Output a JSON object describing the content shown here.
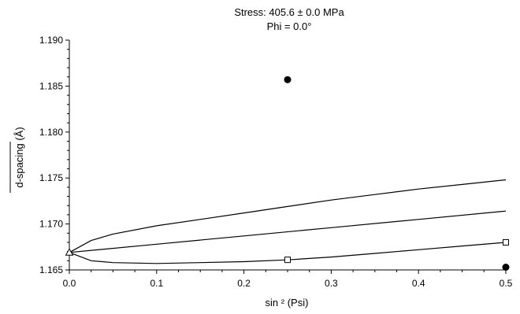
{
  "chart_data": {
    "type": "scatter",
    "title": "Stress: 405.6 ± 0.0  MPa",
    "subtitle": "Phi = 0.0°",
    "xlabel": "sin ² (Psi)",
    "ylabel": "d-spacing (Å)",
    "xlim": [
      0.0,
      0.5
    ],
    "ylim": [
      1.165,
      1.19
    ],
    "x_ticks": [
      "0.0",
      "0.1",
      "0.2",
      "0.3",
      "0.4",
      "0.5"
    ],
    "y_ticks": [
      "1.165",
      "1.170",
      "1.175",
      "1.180",
      "1.185",
      "1.190"
    ],
    "grid": false,
    "series": [
      {
        "marker": "filled-circle",
        "style": "points",
        "x": [
          0.25,
          0.5
        ],
        "y": [
          1.1857,
          1.1653
        ]
      },
      {
        "marker": "open-square",
        "style": "points",
        "x": [
          0.25,
          0.5
        ],
        "y": [
          1.1661,
          1.168
        ]
      },
      {
        "marker": "open-triangle",
        "style": "points",
        "x": [
          0.0
        ],
        "y": [
          1.1669
        ]
      },
      {
        "style": "line",
        "color": "#000000",
        "x": [
          0.0,
          0.025,
          0.05,
          0.1,
          0.15,
          0.2,
          0.25,
          0.3,
          0.35,
          0.4,
          0.45,
          0.5
        ],
        "y": [
          1.1669,
          1.1682,
          1.1689,
          1.1698,
          1.1705,
          1.1712,
          1.1719,
          1.1726,
          1.1732,
          1.1738,
          1.1743,
          1.1748
        ]
      },
      {
        "style": "line",
        "color": "#000000",
        "x": [
          0.0,
          0.1,
          0.2,
          0.3,
          0.4,
          0.5
        ],
        "y": [
          1.1669,
          1.1678,
          1.1687,
          1.1696,
          1.1705,
          1.1714
        ]
      },
      {
        "style": "line",
        "color": "#000000",
        "x": [
          0.0,
          0.025,
          0.05,
          0.1,
          0.15,
          0.2,
          0.25,
          0.3,
          0.35,
          0.4,
          0.45,
          0.5
        ],
        "y": [
          1.1669,
          1.166,
          1.1658,
          1.1657,
          1.1658,
          1.1659,
          1.1661,
          1.1664,
          1.1668,
          1.1672,
          1.1676,
          1.168
        ]
      }
    ]
  }
}
